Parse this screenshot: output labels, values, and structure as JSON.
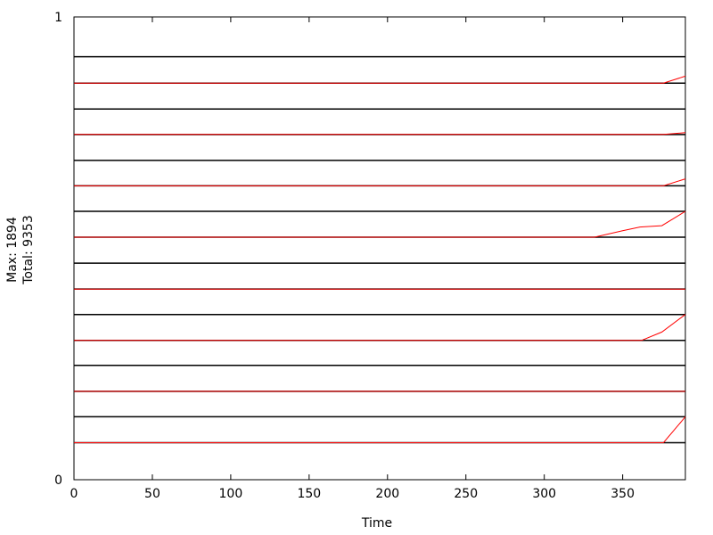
{
  "chart_data": {
    "type": "line",
    "title": "",
    "xlabel": "Time",
    "ylabel_lines": [
      "Max: 1894",
      "Total: 9353"
    ],
    "xlim": [
      0,
      390
    ],
    "ylim": [
      0,
      1
    ],
    "x_ticks": [
      0,
      50,
      100,
      150,
      200,
      250,
      300,
      350
    ],
    "y_ticks": [
      0,
      1
    ],
    "grid": false,
    "legend": "none",
    "band_color": "#000000",
    "series_color": "#ff0000",
    "bands": [
      {
        "base": 0.08,
        "top": 0.136,
        "points": [
          [
            0,
            0.08
          ],
          [
            376,
            0.08
          ],
          [
            390,
            0.136
          ]
        ]
      },
      {
        "base": 0.191,
        "top": 0.247,
        "points": [
          [
            0,
            0.191
          ],
          [
            390,
            0.191
          ]
        ]
      },
      {
        "base": 0.301,
        "top": 0.357,
        "points": [
          [
            0,
            0.301
          ],
          [
            362,
            0.301
          ],
          [
            375,
            0.319
          ],
          [
            390,
            0.357
          ]
        ]
      },
      {
        "base": 0.412,
        "top": 0.468,
        "points": [
          [
            0,
            0.412
          ],
          [
            390,
            0.412
          ]
        ]
      },
      {
        "base": 0.524,
        "top": 0.58,
        "points": [
          [
            0,
            0.524
          ],
          [
            332,
            0.524
          ],
          [
            350,
            0.538
          ],
          [
            361,
            0.546
          ],
          [
            375,
            0.549
          ],
          [
            390,
            0.58
          ]
        ]
      },
      {
        "base": 0.635,
        "top": 0.69,
        "points": [
          [
            0,
            0.635
          ],
          [
            376,
            0.635
          ],
          [
            390,
            0.65
          ]
        ]
      },
      {
        "base": 0.746,
        "top": 0.801,
        "points": [
          [
            0,
            0.746
          ],
          [
            376,
            0.746
          ],
          [
            390,
            0.75
          ]
        ]
      },
      {
        "base": 0.857,
        "top": 0.914,
        "points": [
          [
            0,
            0.857
          ],
          [
            376,
            0.857
          ],
          [
            390,
            0.872
          ]
        ]
      }
    ]
  }
}
